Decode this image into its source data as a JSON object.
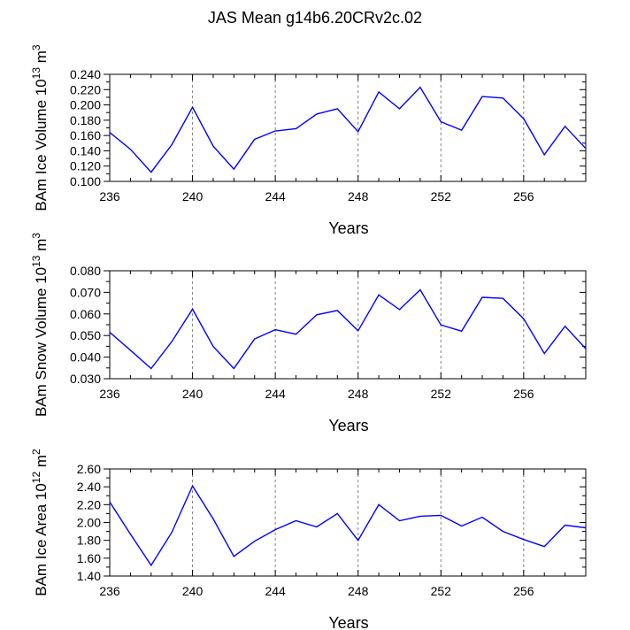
{
  "title": "JAS Mean g14b6.20CRv2c.02",
  "colors": {
    "line": "#0000ff",
    "axis": "#000000",
    "grid": "#808080"
  },
  "chart_data": [
    {
      "type": "line",
      "title": "",
      "xlabel": "Years",
      "ylabel_main": "BAm Ice Volume 10",
      "ylabel_exp": "13",
      "ylabel_unit": " m",
      "ylabel_unit_exp": "3",
      "xlim": [
        236,
        259
      ],
      "ylim": [
        0.1,
        0.24
      ],
      "xticks": [
        236,
        240,
        244,
        248,
        252,
        256
      ],
      "xtick_labels": [
        "236",
        "240",
        "244",
        "248",
        "252",
        "256"
      ],
      "yticks": [
        0.1,
        0.12,
        0.14,
        0.16,
        0.18,
        0.2,
        0.22,
        0.24
      ],
      "ytick_labels": [
        "0.100",
        "0.120",
        "0.140",
        "0.160",
        "0.180",
        "0.200",
        "0.220",
        "0.240"
      ],
      "y_minor_step": 0.01,
      "grid_x": [
        240,
        244,
        248,
        252,
        256
      ],
      "x": [
        236,
        237,
        238,
        239,
        240,
        241,
        242,
        243,
        244,
        245,
        246,
        247,
        248,
        249,
        250,
        251,
        252,
        253,
        254,
        255,
        256,
        257,
        258,
        259
      ],
      "values": [
        0.164,
        0.142,
        0.112,
        0.148,
        0.197,
        0.146,
        0.116,
        0.155,
        0.166,
        0.169,
        0.188,
        0.195,
        0.165,
        0.217,
        0.195,
        0.223,
        0.178,
        0.167,
        0.211,
        0.209,
        0.182,
        0.135,
        0.172,
        0.143
      ]
    },
    {
      "type": "line",
      "title": "",
      "xlabel": "Years",
      "ylabel_main": "BAm Snow Volume 10",
      "ylabel_exp": "13",
      "ylabel_unit": " m",
      "ylabel_unit_exp": "3",
      "xlim": [
        236,
        259
      ],
      "ylim": [
        0.03,
        0.08
      ],
      "xticks": [
        236,
        240,
        244,
        248,
        252,
        256
      ],
      "xtick_labels": [
        "236",
        "240",
        "244",
        "248",
        "252",
        "256"
      ],
      "yticks": [
        0.03,
        0.04,
        0.05,
        0.06,
        0.07,
        0.08
      ],
      "ytick_labels": [
        "0.030",
        "0.040",
        "0.050",
        "0.060",
        "0.070",
        "0.080"
      ],
      "y_minor_step": 0.005,
      "grid_x": [
        240,
        244,
        248,
        252,
        256
      ],
      "x": [
        236,
        237,
        238,
        239,
        240,
        241,
        242,
        243,
        244,
        245,
        246,
        247,
        248,
        249,
        250,
        251,
        252,
        253,
        254,
        255,
        256,
        257,
        258,
        259
      ],
      "values": [
        0.0515,
        0.0432,
        0.0347,
        0.0472,
        0.0622,
        0.0449,
        0.0347,
        0.0484,
        0.0527,
        0.0506,
        0.0596,
        0.0616,
        0.0522,
        0.0688,
        0.062,
        0.0712,
        0.0549,
        0.052,
        0.0677,
        0.0672,
        0.0578,
        0.0417,
        0.0543,
        0.0439
      ]
    },
    {
      "type": "line",
      "title": "",
      "xlabel": "Years",
      "ylabel_main": "BAm Ice Area 10",
      "ylabel_exp": "12",
      "ylabel_unit": " m",
      "ylabel_unit_exp": "2",
      "xlim": [
        236,
        259
      ],
      "ylim": [
        1.4,
        2.6
      ],
      "xticks": [
        236,
        240,
        244,
        248,
        252,
        256
      ],
      "xtick_labels": [
        "236",
        "240",
        "244",
        "248",
        "252",
        "256"
      ],
      "yticks": [
        1.4,
        1.6,
        1.8,
        2.0,
        2.2,
        2.4,
        2.6
      ],
      "ytick_labels": [
        "1.40",
        "1.60",
        "1.80",
        "2.00",
        "2.20",
        "2.40",
        "2.60"
      ],
      "y_minor_step": 0.1,
      "grid_x": [
        240,
        244,
        248,
        252,
        256
      ],
      "x": [
        236,
        237,
        238,
        239,
        240,
        241,
        242,
        243,
        244,
        245,
        246,
        247,
        248,
        249,
        250,
        251,
        252,
        253,
        254,
        255,
        256,
        257,
        258,
        259
      ],
      "values": [
        2.23,
        1.87,
        1.52,
        1.89,
        2.41,
        2.04,
        1.62,
        1.79,
        1.92,
        2.02,
        1.95,
        2.1,
        1.8,
        2.2,
        2.02,
        2.07,
        2.08,
        1.96,
        2.06,
        1.9,
        1.81,
        1.73,
        1.97,
        1.94
      ]
    }
  ]
}
